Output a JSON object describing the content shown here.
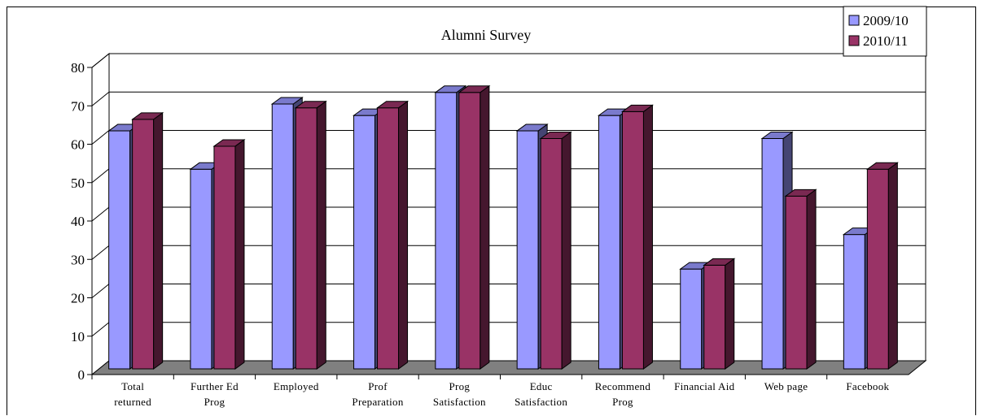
{
  "chart_data": {
    "type": "bar",
    "title": "Alumni Survey",
    "xlabel": "",
    "ylabel": "",
    "ylim": [
      0,
      80
    ],
    "yticks": [
      0,
      10,
      20,
      30,
      40,
      50,
      60,
      70,
      80
    ],
    "grid": true,
    "legend_position": "top-right",
    "categories": [
      [
        "Total",
        "returned"
      ],
      [
        "Further Ed",
        "Prog"
      ],
      [
        "Employed"
      ],
      [
        "Prof",
        "Preparation"
      ],
      [
        "Prog",
        "Satisfaction"
      ],
      [
        "Educ",
        "Satisfaction"
      ],
      [
        "Recommend",
        "Prog"
      ],
      [
        "Financial Aid"
      ],
      [
        "Web page"
      ],
      [
        "Facebook"
      ]
    ],
    "series": [
      {
        "name": "2009/10",
        "color": "#9999ff",
        "values": [
          62,
          52,
          69,
          66,
          72,
          62,
          66,
          26,
          60,
          35
        ]
      },
      {
        "name": "2010/11",
        "color": "#993366",
        "values": [
          65,
          58,
          68,
          68,
          72,
          60,
          67,
          27,
          45,
          52
        ]
      }
    ]
  }
}
